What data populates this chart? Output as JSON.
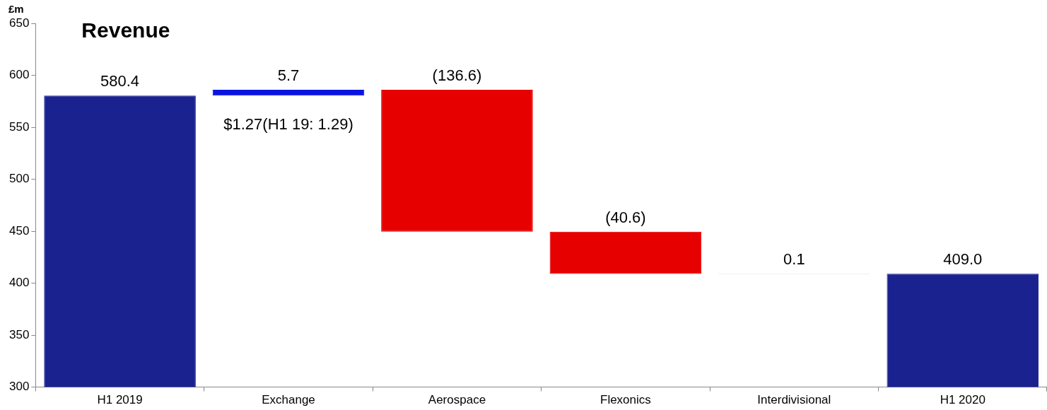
{
  "chart_data": {
    "type": "bar",
    "title": "Revenue",
    "ylabel": "£m",
    "categories": [
      "H1 2019",
      "Exchange",
      "Aerospace",
      "Flexonics",
      "Interdivisional",
      "H1 2020"
    ],
    "values": [
      580.4,
      5.7,
      -136.6,
      -40.6,
      0.1,
      409.0
    ],
    "base": [
      null,
      580.4,
      586.1,
      449.5,
      408.9,
      null
    ],
    "colors": [
      "#1a2290",
      "#0a14e0",
      "#e60000",
      "#e60000",
      "#0a14e0",
      "#1a2290"
    ],
    "value_labels": [
      "580.4",
      "5.7",
      "(136.6)",
      "(40.6)",
      "0.1",
      "409.0"
    ],
    "annotations": [
      "$1.27(H1 19: 1.29)"
    ],
    "ylim": [
      300,
      650
    ],
    "yticks": [
      300,
      350,
      400,
      450,
      500,
      550,
      600,
      650
    ],
    "grid": false,
    "legend": false
  }
}
